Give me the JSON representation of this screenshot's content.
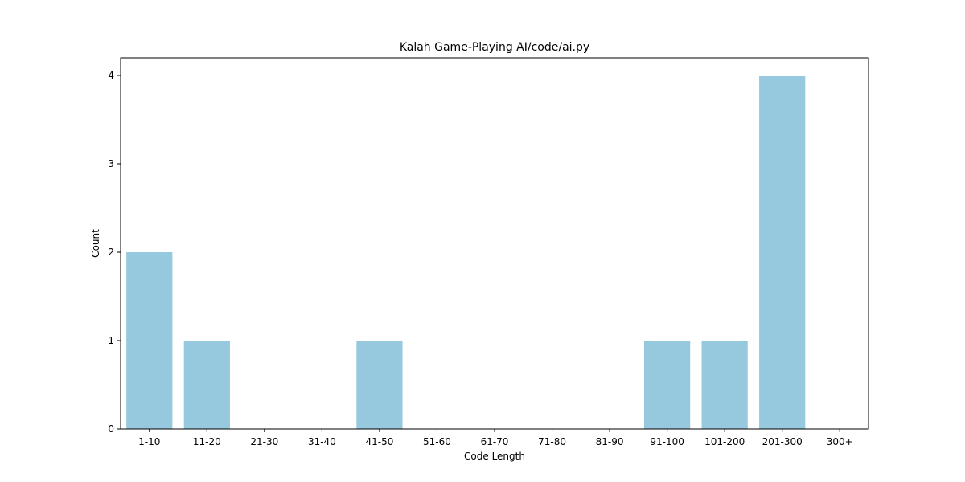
{
  "chart_data": {
    "type": "bar",
    "title": "Kalah Game-Playing AI/code/ai.py",
    "xlabel": "Code Length",
    "ylabel": "Count",
    "categories": [
      "1-10",
      "11-20",
      "21-30",
      "31-40",
      "41-50",
      "51-60",
      "61-70",
      "71-80",
      "81-90",
      "91-100",
      "101-200",
      "201-300",
      "300+"
    ],
    "values": [
      2,
      1,
      0,
      0,
      1,
      0,
      0,
      0,
      0,
      1,
      1,
      4,
      0
    ],
    "ylim": [
      0,
      4.2
    ],
    "yticks": [
      0,
      1,
      2,
      3,
      4
    ],
    "bar_color": "#96c9de",
    "grid": false
  }
}
